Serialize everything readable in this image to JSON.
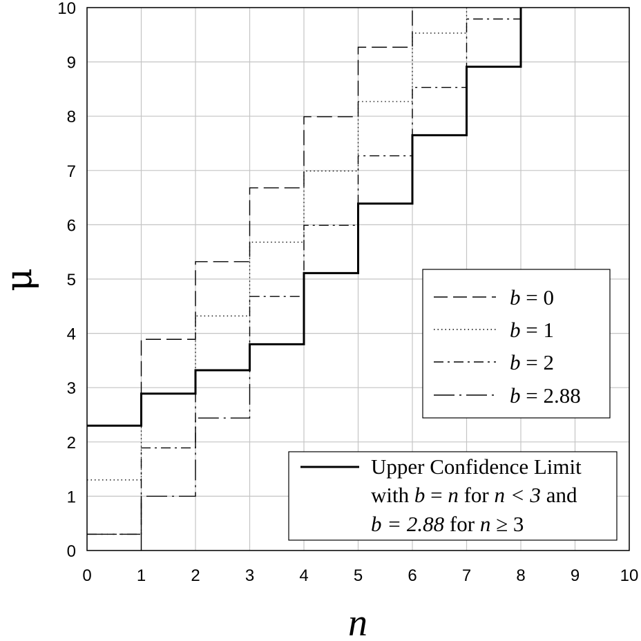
{
  "chart_data": {
    "type": "line",
    "step": true,
    "xlabel": "n",
    "ylabel": "μ",
    "xlim": [
      0,
      10
    ],
    "ylim": [
      0,
      10
    ],
    "x_ticks": [
      0,
      1,
      2,
      3,
      4,
      5,
      6,
      7,
      8,
      9,
      10
    ],
    "y_ticks": [
      0,
      1,
      2,
      3,
      4,
      5,
      6,
      7,
      8,
      9,
      10
    ],
    "grid": true,
    "x_ticks_label": [
      "0",
      "1",
      "2",
      "3",
      "4",
      "5",
      "6",
      "7",
      "8",
      "9",
      "10"
    ],
    "y_ticks_label": [
      "0",
      "1",
      "2",
      "3",
      "4",
      "5",
      "6",
      "7",
      "8",
      "9",
      "10"
    ],
    "series": [
      {
        "name": "b = 0",
        "name_b": "b",
        "name_rest": " = 0",
        "style": "dashed",
        "values": [
          2.3,
          3.89,
          5.32,
          6.68,
          7.99,
          9.27,
          10.53
        ]
      },
      {
        "name": "b = 1",
        "name_b": "b",
        "name_rest": " = 1",
        "style": "dotted",
        "values": [
          1.3,
          2.89,
          4.32,
          5.68,
          6.99,
          8.27,
          9.53,
          10.79
        ]
      },
      {
        "name": "b = 2",
        "name_b": "b",
        "name_rest": " = 2",
        "style": "dashdot",
        "values": [
          0.3,
          1.89,
          3.32,
          4.68,
          5.99,
          7.27,
          8.53,
          9.79
        ]
      },
      {
        "name": "b = 2.88",
        "name_b": "b",
        "name_rest": " = 2.88",
        "style": "dashdot-long",
        "values": [
          0.3,
          1.0,
          2.44,
          3.8,
          5.11,
          6.39,
          7.65,
          8.91,
          10.17
        ]
      },
      {
        "name": "Upper Confidence Limit with b = n for n < 3 and b = 2.88 for n ≥ 3",
        "style": "solid-thick",
        "values": [
          2.3,
          2.89,
          3.32,
          3.8,
          5.11,
          6.39,
          7.65,
          8.91,
          10.17
        ]
      }
    ],
    "legend_main": {
      "placement": "right-middle"
    },
    "legend_ucl": {
      "placement": "bottom-right",
      "line1": "Upper Confidence Limit",
      "line2_a": "with ",
      "line2_b": "b",
      "line2_c": " = ",
      "line2_d": "n",
      "line2_e": " for ",
      "line2_f": "n",
      "line2_g": " < 3",
      "line2_h": " and",
      "line3_a": "b",
      "line3_b": " = 2.88",
      "line3_c": " for ",
      "line3_d": "n",
      "line3_e": " ≥ 3"
    }
  }
}
